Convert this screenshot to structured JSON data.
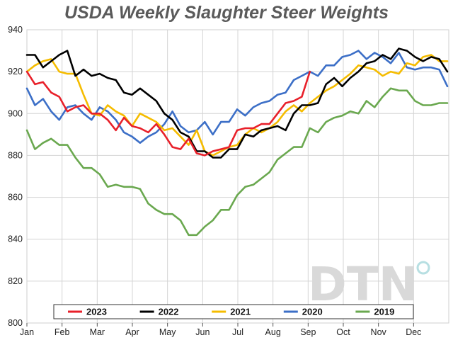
{
  "title": "USDA Weekly Slaughter Steer Weights",
  "watermark": "DTN",
  "chart_data": {
    "type": "line",
    "title": "USDA Weekly Slaughter Steer Weights",
    "xlabel": "",
    "ylabel": "",
    "xlim": [
      0,
      12
    ],
    "ylim": [
      800,
      940
    ],
    "x_ticks": [
      {
        "label": "Jan",
        "x": 0
      },
      {
        "label": "Feb",
        "x": 1
      },
      {
        "label": "Mar",
        "x": 2
      },
      {
        "label": "Apr",
        "x": 3
      },
      {
        "label": "May",
        "x": 4
      },
      {
        "label": "Jun",
        "x": 5
      },
      {
        "label": "Jul",
        "x": 6
      },
      {
        "label": "Aug",
        "x": 7
      },
      {
        "label": "Sep",
        "x": 8
      },
      {
        "label": "Oct",
        "x": 9
      },
      {
        "label": "Nov",
        "x": 10
      },
      {
        "label": "Dec",
        "x": 11
      }
    ],
    "y_ticks": [
      800,
      820,
      840,
      860,
      880,
      900,
      920,
      940
    ],
    "legend_position": "bottom",
    "series": [
      {
        "name": "2023",
        "color": "#e8202a",
        "x": [
          0,
          0.23,
          0.46,
          0.69,
          0.92,
          1.15,
          1.38,
          1.61,
          1.84,
          2.07,
          2.3,
          2.53,
          2.76,
          2.99,
          3.22,
          3.45,
          3.68,
          3.91,
          4.14,
          4.37,
          4.6,
          4.83,
          5.06,
          5.29,
          5.52,
          5.75,
          5.98,
          6.21,
          6.44,
          6.67,
          6.9,
          7.13,
          7.36,
          7.59,
          7.82,
          8.05
        ],
        "values": [
          920,
          914,
          915,
          910,
          908,
          901,
          903,
          904,
          900,
          900,
          897,
          892,
          898,
          894,
          893,
          891,
          895,
          890,
          884,
          883,
          888,
          881,
          880,
          882,
          883,
          884,
          892,
          893,
          893,
          895,
          895,
          900,
          905,
          906,
          908,
          920
        ]
      },
      {
        "name": "2022",
        "color": "#000000",
        "x": [
          0,
          0.23,
          0.46,
          0.69,
          0.92,
          1.15,
          1.38,
          1.61,
          1.84,
          2.07,
          2.3,
          2.53,
          2.76,
          2.99,
          3.22,
          3.45,
          3.68,
          3.91,
          4.14,
          4.37,
          4.6,
          4.83,
          5.06,
          5.29,
          5.52,
          5.75,
          5.98,
          6.21,
          6.44,
          6.67,
          6.9,
          7.13,
          7.36,
          7.59,
          7.82,
          8.05,
          8.28,
          8.51,
          8.74,
          8.97,
          9.2,
          9.43,
          9.66,
          9.89,
          10.12,
          10.35,
          10.58,
          10.81,
          11.04,
          11.27,
          11.5,
          11.73,
          11.96
        ],
        "values": [
          928,
          928,
          922,
          925,
          928,
          930,
          918,
          921,
          918,
          919,
          917,
          916,
          910,
          909,
          912,
          909,
          906,
          900,
          897,
          891,
          889,
          882,
          882,
          879,
          879,
          883,
          883,
          890,
          889,
          892,
          893,
          894,
          892,
          900,
          904,
          904,
          905,
          914,
          917,
          913,
          917,
          920,
          924,
          925,
          928,
          926,
          931,
          930,
          927,
          925,
          927,
          926,
          920
        ]
      },
      {
        "name": "2021",
        "color": "#f5bc00",
        "x": [
          0,
          0.23,
          0.46,
          0.69,
          0.92,
          1.15,
          1.38,
          1.61,
          1.84,
          2.07,
          2.3,
          2.53,
          2.76,
          2.99,
          3.22,
          3.45,
          3.68,
          3.91,
          4.14,
          4.37,
          4.6,
          4.83,
          5.06,
          5.29,
          5.52,
          5.75,
          5.98,
          6.21,
          6.44,
          6.67,
          6.9,
          7.13,
          7.36,
          7.59,
          7.82,
          8.05,
          8.28,
          8.51,
          8.74,
          8.97,
          9.2,
          9.43,
          9.66,
          9.89,
          10.12,
          10.35,
          10.58,
          10.81,
          11.04,
          11.27,
          11.5,
          11.73,
          11.96
        ],
        "values": [
          920,
          923,
          925,
          926,
          920,
          919,
          919,
          909,
          900,
          899,
          904,
          901,
          899,
          894,
          900,
          898,
          896,
          892,
          893,
          889,
          885,
          892,
          882,
          880,
          882,
          884,
          885,
          890,
          893,
          891,
          893,
          896,
          901,
          904,
          901,
          905,
          908,
          911,
          913,
          916,
          919,
          923,
          922,
          921,
          918,
          920,
          919,
          924,
          923,
          927,
          928,
          925,
          925
        ]
      },
      {
        "name": "2020",
        "color": "#3c6fc7",
        "x": [
          0,
          0.23,
          0.46,
          0.69,
          0.92,
          1.15,
          1.38,
          1.61,
          1.84,
          2.07,
          2.3,
          2.53,
          2.76,
          2.99,
          3.22,
          3.45,
          3.68,
          3.91,
          4.14,
          4.37,
          4.6,
          4.83,
          5.06,
          5.29,
          5.52,
          5.75,
          5.98,
          6.21,
          6.44,
          6.67,
          6.9,
          7.13,
          7.36,
          7.59,
          7.82,
          8.05,
          8.28,
          8.51,
          8.74,
          8.97,
          9.2,
          9.43,
          9.66,
          9.89,
          10.12,
          10.35,
          10.58,
          10.81,
          11.04,
          11.27,
          11.5,
          11.73,
          11.96
        ],
        "values": [
          912,
          904,
          907,
          901,
          897,
          903,
          904,
          900,
          897,
          903,
          901,
          897,
          891,
          889,
          886,
          889,
          891,
          895,
          901,
          894,
          891,
          892,
          896,
          890,
          896,
          896,
          902,
          899,
          903,
          905,
          906,
          909,
          910,
          916,
          918,
          920,
          918,
          923,
          923,
          927,
          928,
          930,
          926,
          929,
          927,
          924,
          929,
          922,
          921,
          922,
          922,
          921,
          913
        ]
      },
      {
        "name": "2019",
        "color": "#6aa84f",
        "x": [
          0,
          0.23,
          0.46,
          0.69,
          0.92,
          1.15,
          1.38,
          1.61,
          1.84,
          2.07,
          2.3,
          2.53,
          2.76,
          2.99,
          3.22,
          3.45,
          3.68,
          3.91,
          4.14,
          4.37,
          4.6,
          4.83,
          5.06,
          5.29,
          5.52,
          5.75,
          5.98,
          6.21,
          6.44,
          6.67,
          6.9,
          7.13,
          7.36,
          7.59,
          7.82,
          8.05,
          8.28,
          8.51,
          8.74,
          8.97,
          9.2,
          9.43,
          9.66,
          9.89,
          10.12,
          10.35,
          10.58,
          10.81,
          11.04,
          11.27,
          11.5,
          11.73,
          11.96
        ],
        "values": [
          892,
          883,
          886,
          888,
          885,
          885,
          879,
          874,
          874,
          871,
          865,
          866,
          865,
          865,
          864,
          857,
          854,
          852,
          852,
          849,
          842,
          842,
          846,
          849,
          854,
          854,
          861,
          865,
          866,
          869,
          872,
          878,
          881,
          884,
          884,
          893,
          891,
          896,
          898,
          899,
          901,
          900,
          906,
          903,
          908,
          912,
          911,
          911,
          906,
          904,
          904,
          905,
          905
        ]
      }
    ]
  }
}
